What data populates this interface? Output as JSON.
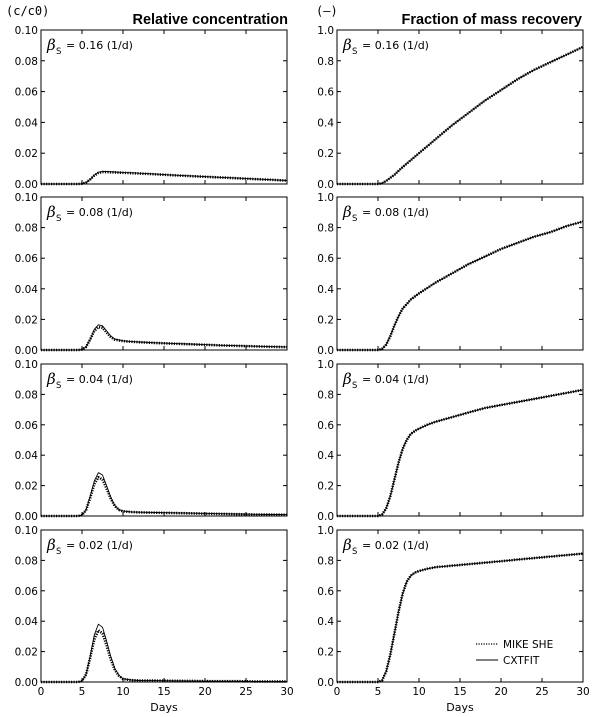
{
  "figure": {
    "left_unit": "(c/c0)",
    "right_unit": "(–)",
    "left_title": "Relative concentration",
    "right_title": "Fraction of mass recovery",
    "xlabel": "Days",
    "legend": [
      "MIKE SHE",
      "CXTFIT"
    ],
    "param_symbol": "β",
    "param_subscript": "S"
  },
  "chart_data": [
    {
      "type": "line",
      "column": "left",
      "row": 0,
      "annotation": "= 0.16 (1/d)",
      "xlim": [
        0,
        30
      ],
      "ylim": [
        0,
        0.1
      ],
      "xticks": [
        0,
        5,
        10,
        15,
        20,
        25,
        30
      ],
      "yticks": [
        "0.00",
        "0.02",
        "0.04",
        "0.06",
        "0.08",
        "0.10"
      ],
      "x": [
        0,
        4.5,
        5,
        5.5,
        6,
        6.5,
        7,
        7.5,
        8,
        9,
        10,
        12,
        14,
        16,
        18,
        20,
        22,
        24,
        26,
        28,
        30
      ],
      "series": [
        {
          "name": "MIKE SHE",
          "style": "dotted",
          "y": [
            0,
            0,
            0.0002,
            0.001,
            0.003,
            0.0055,
            0.0072,
            0.0077,
            0.0077,
            0.0075,
            0.0073,
            0.0068,
            0.0063,
            0.0057,
            0.0052,
            0.0047,
            0.0042,
            0.0037,
            0.0032,
            0.0027,
            0.0022
          ]
        },
        {
          "name": "CXTFIT",
          "style": "solid",
          "y": [
            0,
            0,
            0.0002,
            0.001,
            0.003,
            0.0058,
            0.0076,
            0.0081,
            0.0081,
            0.0078,
            0.0075,
            0.007,
            0.0064,
            0.0058,
            0.0053,
            0.0048,
            0.0043,
            0.0038,
            0.0033,
            0.0028,
            0.0023
          ]
        }
      ]
    },
    {
      "type": "line",
      "column": "right",
      "row": 0,
      "annotation": "= 0.16 (1/d)",
      "xlim": [
        0,
        30
      ],
      "ylim": [
        0,
        1.0
      ],
      "xticks": [
        0,
        5,
        10,
        15,
        20,
        25,
        30
      ],
      "yticks": [
        "0.0",
        "0.2",
        "0.4",
        "0.6",
        "0.8",
        "1.0"
      ],
      "x": [
        0,
        5,
        5.5,
        6,
        7,
        8,
        10,
        12,
        14,
        16,
        18,
        20,
        22,
        24,
        26,
        28,
        30
      ],
      "series": [
        {
          "name": "MIKE SHE",
          "style": "dotted",
          "y": [
            0,
            0,
            0.005,
            0.02,
            0.06,
            0.11,
            0.2,
            0.29,
            0.38,
            0.46,
            0.54,
            0.61,
            0.68,
            0.74,
            0.79,
            0.84,
            0.89
          ]
        },
        {
          "name": "CXTFIT",
          "style": "solid",
          "y": [
            0,
            0,
            0.005,
            0.02,
            0.06,
            0.11,
            0.2,
            0.29,
            0.38,
            0.46,
            0.54,
            0.61,
            0.68,
            0.74,
            0.79,
            0.84,
            0.89
          ]
        }
      ]
    },
    {
      "type": "line",
      "column": "left",
      "row": 1,
      "annotation": "= 0.08 (1/d)",
      "xlim": [
        0,
        30
      ],
      "ylim": [
        0,
        0.1
      ],
      "xticks": [
        0,
        5,
        10,
        15,
        20,
        25,
        30
      ],
      "yticks": [
        "0.00",
        "0.02",
        "0.04",
        "0.06",
        "0.08",
        "0.10"
      ],
      "x": [
        0,
        4.5,
        5,
        5.5,
        6,
        6.5,
        7,
        7.5,
        8,
        8.5,
        9,
        10,
        11,
        12,
        14,
        16,
        18,
        20,
        22,
        24,
        26,
        28,
        30
      ],
      "series": [
        {
          "name": "MIKE SHE",
          "style": "dotted",
          "y": [
            0,
            0,
            0.0003,
            0.002,
            0.007,
            0.0125,
            0.015,
            0.0145,
            0.0115,
            0.0085,
            0.0068,
            0.0058,
            0.0054,
            0.0051,
            0.0046,
            0.0042,
            0.0038,
            0.0034,
            0.003,
            0.0027,
            0.0024,
            0.0021,
            0.0019
          ]
        },
        {
          "name": "CXTFIT",
          "style": "solid",
          "y": [
            0,
            0,
            0.0003,
            0.002,
            0.007,
            0.0135,
            0.0165,
            0.0158,
            0.0125,
            0.0092,
            0.0072,
            0.006,
            0.0055,
            0.0052,
            0.0047,
            0.0043,
            0.0039,
            0.0035,
            0.0031,
            0.0028,
            0.0025,
            0.0022,
            0.002
          ]
        }
      ]
    },
    {
      "type": "line",
      "column": "right",
      "row": 1,
      "annotation": "= 0.08 (1/d)",
      "xlim": [
        0,
        30
      ],
      "ylim": [
        0,
        1.0
      ],
      "xticks": [
        0,
        5,
        10,
        15,
        20,
        25,
        30
      ],
      "yticks": [
        "0.0",
        "0.2",
        "0.4",
        "0.6",
        "0.8",
        "1.0"
      ],
      "x": [
        0,
        5,
        5.5,
        6,
        6.5,
        7,
        7.5,
        8,
        9,
        10,
        12,
        14,
        16,
        18,
        20,
        22,
        24,
        26,
        28,
        30
      ],
      "series": [
        {
          "name": "MIKE SHE",
          "style": "dotted",
          "y": [
            0,
            0,
            0.008,
            0.035,
            0.09,
            0.16,
            0.22,
            0.27,
            0.33,
            0.37,
            0.44,
            0.5,
            0.56,
            0.61,
            0.66,
            0.7,
            0.74,
            0.77,
            0.81,
            0.84
          ]
        },
        {
          "name": "CXTFIT",
          "style": "solid",
          "y": [
            0,
            0,
            0.008,
            0.035,
            0.09,
            0.16,
            0.22,
            0.27,
            0.33,
            0.37,
            0.44,
            0.5,
            0.56,
            0.61,
            0.66,
            0.7,
            0.74,
            0.77,
            0.81,
            0.84
          ]
        }
      ]
    },
    {
      "type": "line",
      "column": "left",
      "row": 2,
      "annotation": "= 0.04 (1/d)",
      "xlim": [
        0,
        30
      ],
      "ylim": [
        0,
        0.1
      ],
      "xticks": [
        0,
        5,
        10,
        15,
        20,
        25,
        30
      ],
      "yticks": [
        "0.00",
        "0.02",
        "0.04",
        "0.06",
        "0.08",
        "0.10"
      ],
      "x": [
        0,
        4.5,
        5,
        5.5,
        6,
        6.5,
        7,
        7.5,
        8,
        8.5,
        9,
        9.5,
        10,
        11,
        12,
        14,
        16,
        18,
        20,
        22,
        24,
        26,
        28,
        30
      ],
      "series": [
        {
          "name": "MIKE SHE",
          "style": "dotted",
          "y": [
            0,
            0,
            0.0005,
            0.004,
            0.012,
            0.021,
            0.0255,
            0.024,
            0.018,
            0.0115,
            0.0065,
            0.004,
            0.0031,
            0.0026,
            0.0024,
            0.0022,
            0.002,
            0.0018,
            0.0016,
            0.0014,
            0.0012,
            0.001,
            0.0009,
            0.0008
          ]
        },
        {
          "name": "CXTFIT",
          "style": "solid",
          "y": [
            0,
            0,
            0.0005,
            0.004,
            0.013,
            0.023,
            0.0285,
            0.027,
            0.02,
            0.0125,
            0.007,
            0.0042,
            0.0032,
            0.0027,
            0.0025,
            0.0023,
            0.0021,
            0.0019,
            0.0017,
            0.0015,
            0.0013,
            0.0011,
            0.001,
            0.0009
          ]
        }
      ]
    },
    {
      "type": "line",
      "column": "right",
      "row": 2,
      "annotation": "= 0.04 (1/d)",
      "xlim": [
        0,
        30
      ],
      "ylim": [
        0,
        1.0
      ],
      "xticks": [
        0,
        5,
        10,
        15,
        20,
        25,
        30
      ],
      "yticks": [
        "0.0",
        "0.2",
        "0.4",
        "0.6",
        "0.8",
        "1.0"
      ],
      "x": [
        0,
        5,
        5.5,
        6,
        6.5,
        7,
        7.5,
        8,
        8.5,
        9,
        9.5,
        10,
        11,
        12,
        14,
        16,
        18,
        20,
        22,
        24,
        26,
        28,
        30
      ],
      "series": [
        {
          "name": "MIKE SHE",
          "style": "dotted",
          "y": [
            0,
            0,
            0.01,
            0.05,
            0.13,
            0.24,
            0.35,
            0.44,
            0.5,
            0.54,
            0.56,
            0.575,
            0.6,
            0.62,
            0.65,
            0.68,
            0.71,
            0.73,
            0.75,
            0.77,
            0.79,
            0.81,
            0.83
          ]
        },
        {
          "name": "CXTFIT",
          "style": "solid",
          "y": [
            0,
            0,
            0.01,
            0.05,
            0.13,
            0.24,
            0.35,
            0.44,
            0.5,
            0.54,
            0.56,
            0.575,
            0.6,
            0.62,
            0.65,
            0.68,
            0.71,
            0.73,
            0.75,
            0.77,
            0.79,
            0.81,
            0.83
          ]
        }
      ]
    },
    {
      "type": "line",
      "column": "left",
      "row": 3,
      "annotation": "= 0.02 (1/d)",
      "xlim": [
        0,
        30
      ],
      "ylim": [
        0,
        0.1
      ],
      "xticks": [
        0,
        5,
        10,
        15,
        20,
        25,
        30
      ],
      "yticks": [
        "0.00",
        "0.02",
        "0.04",
        "0.06",
        "0.08",
        "0.10"
      ],
      "x": [
        0,
        4.5,
        5,
        5.5,
        6,
        6.5,
        7,
        7.5,
        8,
        8.5,
        9,
        9.5,
        10,
        11,
        12,
        14,
        16,
        18,
        20,
        22,
        24,
        26,
        28,
        30
      ],
      "series": [
        {
          "name": "MIKE SHE",
          "style": "dotted",
          "y": [
            0,
            0,
            0.0005,
            0.005,
            0.016,
            0.028,
            0.034,
            0.032,
            0.024,
            0.015,
            0.008,
            0.004,
            0.002,
            0.0012,
            0.001,
            0.0009,
            0.0008,
            0.0007,
            0.0006,
            0.0005,
            0.0005,
            0.0004,
            0.0004,
            0.0003
          ]
        },
        {
          "name": "CXTFIT",
          "style": "solid",
          "y": [
            0,
            0,
            0.0005,
            0.005,
            0.017,
            0.031,
            0.038,
            0.036,
            0.027,
            0.017,
            0.009,
            0.0045,
            0.0022,
            0.0013,
            0.001,
            0.0009,
            0.0008,
            0.0007,
            0.0006,
            0.0005,
            0.0005,
            0.0004,
            0.0004,
            0.0003
          ]
        }
      ]
    },
    {
      "type": "line",
      "column": "right",
      "row": 3,
      "annotation": "= 0.02 (1/d)",
      "xlim": [
        0,
        30
      ],
      "ylim": [
        0,
        1.0
      ],
      "xticks": [
        0,
        5,
        10,
        15,
        20,
        25,
        30
      ],
      "yticks": [
        "0.0",
        "0.2",
        "0.4",
        "0.6",
        "0.8",
        "1.0"
      ],
      "x": [
        0,
        5,
        5.5,
        6,
        6.5,
        7,
        7.5,
        8,
        8.5,
        9,
        9.5,
        10,
        11,
        12,
        14,
        16,
        18,
        20,
        22,
        24,
        26,
        28,
        30
      ],
      "series": [
        {
          "name": "MIKE SHE",
          "style": "dotted",
          "y": [
            0,
            0,
            0.01,
            0.07,
            0.18,
            0.32,
            0.46,
            0.58,
            0.66,
            0.7,
            0.72,
            0.73,
            0.745,
            0.755,
            0.765,
            0.775,
            0.785,
            0.795,
            0.805,
            0.815,
            0.825,
            0.835,
            0.845
          ]
        },
        {
          "name": "CXTFIT",
          "style": "solid",
          "y": [
            0,
            0,
            0.01,
            0.07,
            0.18,
            0.32,
            0.46,
            0.58,
            0.66,
            0.7,
            0.72,
            0.73,
            0.745,
            0.755,
            0.765,
            0.775,
            0.785,
            0.795,
            0.805,
            0.815,
            0.825,
            0.835,
            0.845
          ]
        }
      ]
    }
  ]
}
